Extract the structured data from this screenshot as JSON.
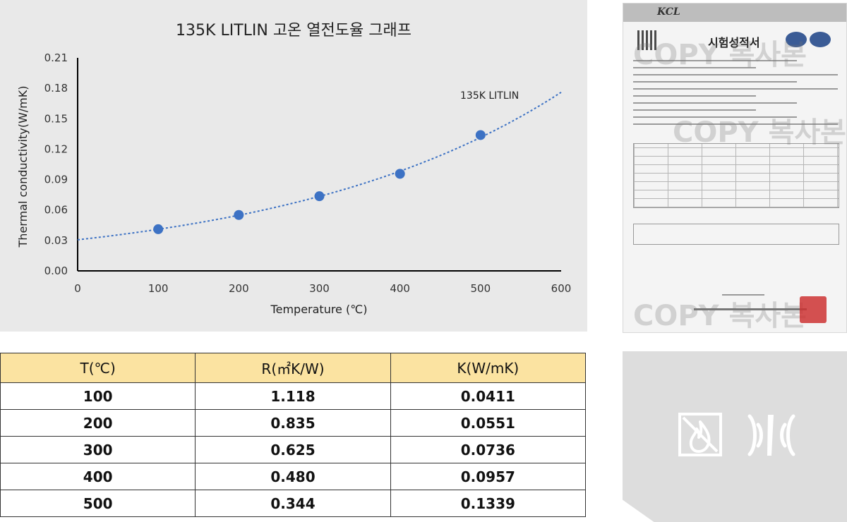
{
  "chart_data": {
    "type": "scatter",
    "title": "135K LITLIN 고온 열전도율 그래프",
    "xlabel": "Temperature (℃)",
    "ylabel": "Thermal conductivity(W/mK)",
    "xlim": [
      0,
      600
    ],
    "ylim": [
      0,
      0.21
    ],
    "xticks": [
      0,
      100,
      200,
      300,
      400,
      500,
      600
    ],
    "yticks": [
      "0.00",
      "0.03",
      "0.06",
      "0.09",
      "0.12",
      "0.15",
      "0.18",
      "0.21"
    ],
    "grid": false,
    "series": [
      {
        "name": "135K LITLIN",
        "x": [
          100,
          200,
          300,
          400,
          500
        ],
        "y": [
          0.0411,
          0.0551,
          0.0736,
          0.0957,
          0.1339
        ],
        "color": "#3d72c4",
        "trendline": "exponential"
      }
    ]
  },
  "table": {
    "headers": [
      "T(℃)",
      "R(㎡K/W)",
      "K(W/mK)"
    ],
    "rows": [
      [
        "100",
        "1.118",
        "0.0411"
      ],
      [
        "200",
        "0.835",
        "0.0551"
      ],
      [
        "300",
        "0.625",
        "0.0736"
      ],
      [
        "400",
        "0.480",
        "0.0957"
      ],
      [
        "500",
        "0.344",
        "0.1339"
      ]
    ],
    "header_color": "#fbe3a1"
  },
  "certificate": {
    "logo": "KCL",
    "title": "시험성적서",
    "watermark": "COPY 복사본"
  },
  "icons": [
    "no-fire-icon",
    "sound-insulation-icon"
  ]
}
